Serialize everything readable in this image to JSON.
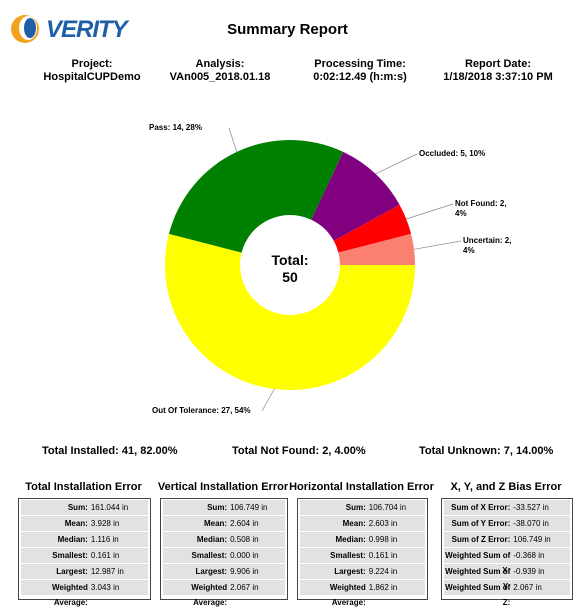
{
  "header": {
    "logo": "VERITY",
    "title": "Summary Report"
  },
  "info": [
    {
      "label": "Project:",
      "value": "HospitalCUPDemo"
    },
    {
      "label": "Analysis:",
      "value": "VAn005_2018.01.18"
    },
    {
      "label": "Processing Time:",
      "value": "0:02:12.49 (h:m:s)"
    },
    {
      "label": "Report Date:",
      "value": "1/18/2018 3:37:10 PM"
    }
  ],
  "chart_data": {
    "type": "donut",
    "values": [
      27,
      14,
      5,
      2,
      2
    ],
    "value_labels": [
      "Out Of Tolerance: 27,  54%",
      "Pass: 14,  28%",
      "Occluded: 5,  10%",
      "Not Found: 2,  4%",
      "Uncertain: 2,  4%"
    ],
    "colors": [
      "#ffff00",
      "#008000",
      "#800080",
      "#ff0000",
      "#fa8072"
    ],
    "center_label": "Total:",
    "total": 50
  },
  "totals": [
    "Total Installed: 41, 82.00%",
    "Total Not Found: 2, 4.00%",
    "Total Unknown: 7, 14.00%"
  ],
  "tables": [
    {
      "title": "Total Installation Error",
      "rows": [
        [
          "Sum:",
          "161.044 in"
        ],
        [
          "Mean:",
          "3.928 in"
        ],
        [
          "Median:",
          "1.116 in"
        ],
        [
          "Smallest:",
          "0.161 in"
        ],
        [
          "Largest:",
          "12.987 in"
        ],
        [
          "Weighted Average:",
          "3.043 in"
        ]
      ]
    },
    {
      "title": "Vertical Installation Error",
      "rows": [
        [
          "Sum:",
          "106.749 in"
        ],
        [
          "Mean:",
          "2.604 in"
        ],
        [
          "Median:",
          "0.508 in"
        ],
        [
          "Smallest:",
          "0.000 in"
        ],
        [
          "Largest:",
          "9.906 in"
        ],
        [
          "Weighted Average:",
          "2.067 in"
        ]
      ]
    },
    {
      "title": "Horizontal Installation Error",
      "rows": [
        [
          "Sum:",
          "106.704 in"
        ],
        [
          "Mean:",
          "2.603 in"
        ],
        [
          "Median:",
          "0.998 in"
        ],
        [
          "Smallest:",
          "0.161 in"
        ],
        [
          "Largest:",
          "9.224 in"
        ],
        [
          "Weighted Average:",
          "1.862 in"
        ]
      ]
    },
    {
      "title": "X, Y, and Z Bias Error",
      "rows": [
        [
          "Sum of X Error:",
          "-33.527 in"
        ],
        [
          "Sum of Y Error:",
          "-38.070 in"
        ],
        [
          "Sum of Z Error:",
          "106.749 in"
        ],
        [
          "Weighted Sum of X:",
          "-0.368 in"
        ],
        [
          "Weighted Sum of Y:",
          "-0.939 in"
        ],
        [
          "Weighted Sum of Z:",
          "2.067 in"
        ]
      ]
    }
  ]
}
